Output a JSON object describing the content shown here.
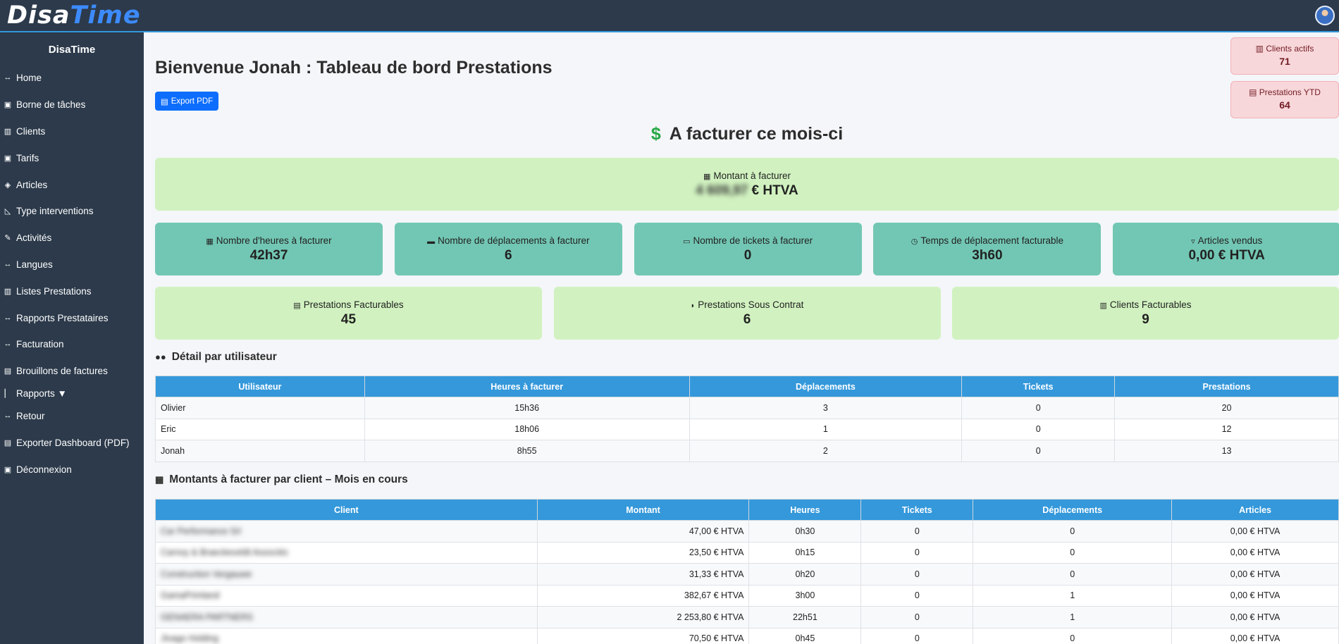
{
  "app": {
    "logo_a": "Disa",
    "logo_b": "Time"
  },
  "sidebar": {
    "title": "DisaTime",
    "items": [
      {
        "label": "Home",
        "icon": "↔"
      },
      {
        "label": "Borne de tâches",
        "icon": "▣"
      },
      {
        "label": "Clients",
        "icon": "▥"
      },
      {
        "label": "Tarifs",
        "icon": "▣"
      },
      {
        "label": "Articles",
        "icon": "◈"
      },
      {
        "label": "Type interventions",
        "icon": "◺"
      },
      {
        "label": "Activités",
        "icon": "✎"
      },
      {
        "label": "Langues",
        "icon": "↔"
      },
      {
        "label": "Listes Prestations",
        "icon": "▥"
      },
      {
        "label": "Rapports Prestataires",
        "icon": "↔"
      },
      {
        "label": "Facturation",
        "icon": "↔"
      },
      {
        "label": "Brouillons de factures",
        "icon": "▤"
      },
      {
        "label": "Rapports ▼",
        "icon": "▏"
      },
      {
        "label": "Retour",
        "icon": "↔"
      },
      {
        "label": "Exporter Dashboard (PDF)",
        "icon": "▤"
      },
      {
        "label": "Déconnexion",
        "icon": "▣"
      }
    ]
  },
  "header": {
    "title": "Bienvenue Jonah : Tableau de bord Prestations",
    "export_label": "Export PDF",
    "mini_cards": [
      {
        "label": "Clients actifs",
        "value": "71"
      },
      {
        "label": "Prestations YTD",
        "value": "64"
      }
    ]
  },
  "billing": {
    "section_title": "A facturer ce mois-ci",
    "amount_label": "Montant à facturer",
    "amount_value": "4 609,97",
    "amount_unit": "€ HTVA",
    "stats": [
      {
        "label": "Nombre d'heures à facturer",
        "value": "42h37",
        "icon": "▦"
      },
      {
        "label": "Nombre de déplacements à facturer",
        "value": "6",
        "icon": "▬"
      },
      {
        "label": "Nombre de tickets à facturer",
        "value": "0",
        "icon": "▭"
      },
      {
        "label": "Temps de déplacement facturable",
        "value": "3h60",
        "icon": "◷"
      },
      {
        "label": "Articles vendus",
        "value": "0,00 € HTVA",
        "icon": "▿"
      }
    ],
    "summary": [
      {
        "label": "Prestations Facturables",
        "value": "45",
        "icon": "▤"
      },
      {
        "label": "Prestations Sous Contrat",
        "value": "6",
        "icon": "◗"
      },
      {
        "label": "Clients Facturables",
        "value": "9",
        "icon": "▥"
      }
    ]
  },
  "user_detail": {
    "title": "Détail par utilisateur",
    "columns": [
      "Utilisateur",
      "Heures à facturer",
      "Déplacements",
      "Tickets",
      "Prestations"
    ],
    "rows": [
      [
        "Olivier",
        "15h36",
        "3",
        "0",
        "20"
      ],
      [
        "Eric",
        "18h06",
        "1",
        "0",
        "12"
      ],
      [
        "Jonah",
        "8h55",
        "2",
        "0",
        "13"
      ]
    ]
  },
  "client_amounts": {
    "title": "Montants à facturer par client – Mois en cours",
    "columns": [
      "Client",
      "Montant",
      "Heures",
      "Tickets",
      "Déplacements",
      "Articles"
    ],
    "rows": [
      [
        "Car Performance Srl",
        "47,00 € HTVA",
        "0h30",
        "0",
        "0",
        "0,00 € HTVA"
      ],
      [
        "Carnoy & Braeckeveldt Associés",
        "23,50 € HTVA",
        "0h15",
        "0",
        "0",
        "0,00 € HTVA"
      ],
      [
        "Construction Vergauwe",
        "31,33 € HTVA",
        "0h20",
        "0",
        "0",
        "0,00 € HTVA"
      ],
      [
        "GamaPrimland",
        "382,67 € HTVA",
        "3h00",
        "0",
        "1",
        "0,00 € HTVA"
      ],
      [
        "GENAERA PARTNERS",
        "2 253,80 € HTVA",
        "22h51",
        "0",
        "1",
        "0,00 € HTVA"
      ],
      [
        "Jivago Holding",
        "70,50 € HTVA",
        "0h45",
        "0",
        "0",
        "0,00 € HTVA"
      ]
    ]
  }
}
